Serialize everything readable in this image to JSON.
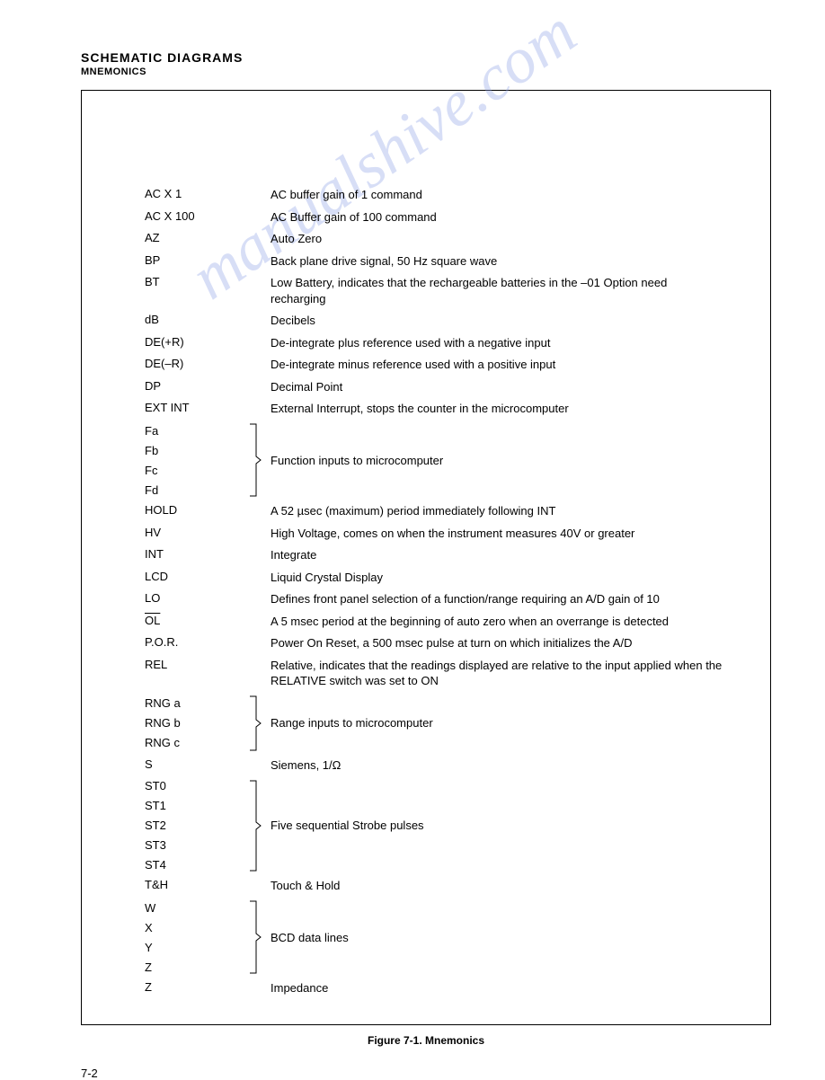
{
  "header": {
    "title": "SCHEMATIC DIAGRAMS",
    "subtitle": "MNEMONICS"
  },
  "watermark": "manualshive.com",
  "entries": [
    {
      "mnemonic": "AC X 1",
      "description": "AC buffer gain of 1 command"
    },
    {
      "mnemonic": "AC X 100",
      "description": "AC Buffer gain of 100 command"
    },
    {
      "mnemonic": "AZ",
      "description": "Auto Zero"
    },
    {
      "mnemonic": "BP",
      "description": "Back plane drive signal, 50 Hz square wave"
    },
    {
      "mnemonic": "BT",
      "description": "Low Battery, indicates that the rechargeable batteries in the –01 Option need recharging"
    },
    {
      "mnemonic": "dB",
      "description": "Decibels"
    },
    {
      "mnemonic": "DE(+R)",
      "description": "De-integrate plus reference used with a negative input"
    },
    {
      "mnemonic": "DE(–R)",
      "description": "De-integrate minus reference used with a positive input"
    },
    {
      "mnemonic": "DP",
      "description": "Decimal Point"
    },
    {
      "mnemonic": "EXT INT",
      "description": "External Interrupt, stops the counter in the microcomputer"
    }
  ],
  "group1": {
    "labels": [
      "Fa",
      "Fb",
      "Fc",
      "Fd"
    ],
    "description": "Function inputs to microcomputer"
  },
  "entries2": [
    {
      "mnemonic": "HOLD",
      "description": "A 52 µsec (maximum) period immediately following INT"
    },
    {
      "mnemonic": "HV",
      "description": "High Voltage, comes on when the instrument measures 40V or greater"
    },
    {
      "mnemonic": "INT",
      "description": "Integrate"
    },
    {
      "mnemonic": "LCD",
      "description": "Liquid Crystal Display"
    },
    {
      "mnemonic": "LO",
      "description": "Defines front panel selection of a function/range requiring an A/D gain of 10"
    },
    {
      "mnemonic": "OL",
      "overline": true,
      "description": "A 5 msec period at the beginning of auto zero when an overrange is detected"
    },
    {
      "mnemonic": "P.O.R.",
      "description": "Power On Reset, a 500 msec pulse at turn on which initializes the A/D"
    },
    {
      "mnemonic": "REL",
      "description": "Relative, indicates that the readings displayed are relative to the input applied when the RELATIVE switch was set to ON"
    }
  ],
  "group2": {
    "labels": [
      "RNG a",
      "RNG b",
      "RNG c"
    ],
    "description": "Range inputs to microcomputer"
  },
  "entries3": [
    {
      "mnemonic": "S",
      "description": "Siemens, 1/Ω"
    }
  ],
  "group3": {
    "labels": [
      "ST0",
      "ST1",
      "ST2",
      "ST3",
      "ST4"
    ],
    "description": "Five sequential Strobe pulses"
  },
  "entries4": [
    {
      "mnemonic": "T&H",
      "description": "Touch & Hold"
    }
  ],
  "group4": {
    "labels": [
      "W",
      "X",
      "Y",
      "Z"
    ],
    "description": "BCD data lines"
  },
  "entries5": [
    {
      "mnemonic": "Z",
      "description": "Impedance"
    }
  ],
  "figure_caption": "Figure 7-1. Mnemonics",
  "page_number": "7-2"
}
